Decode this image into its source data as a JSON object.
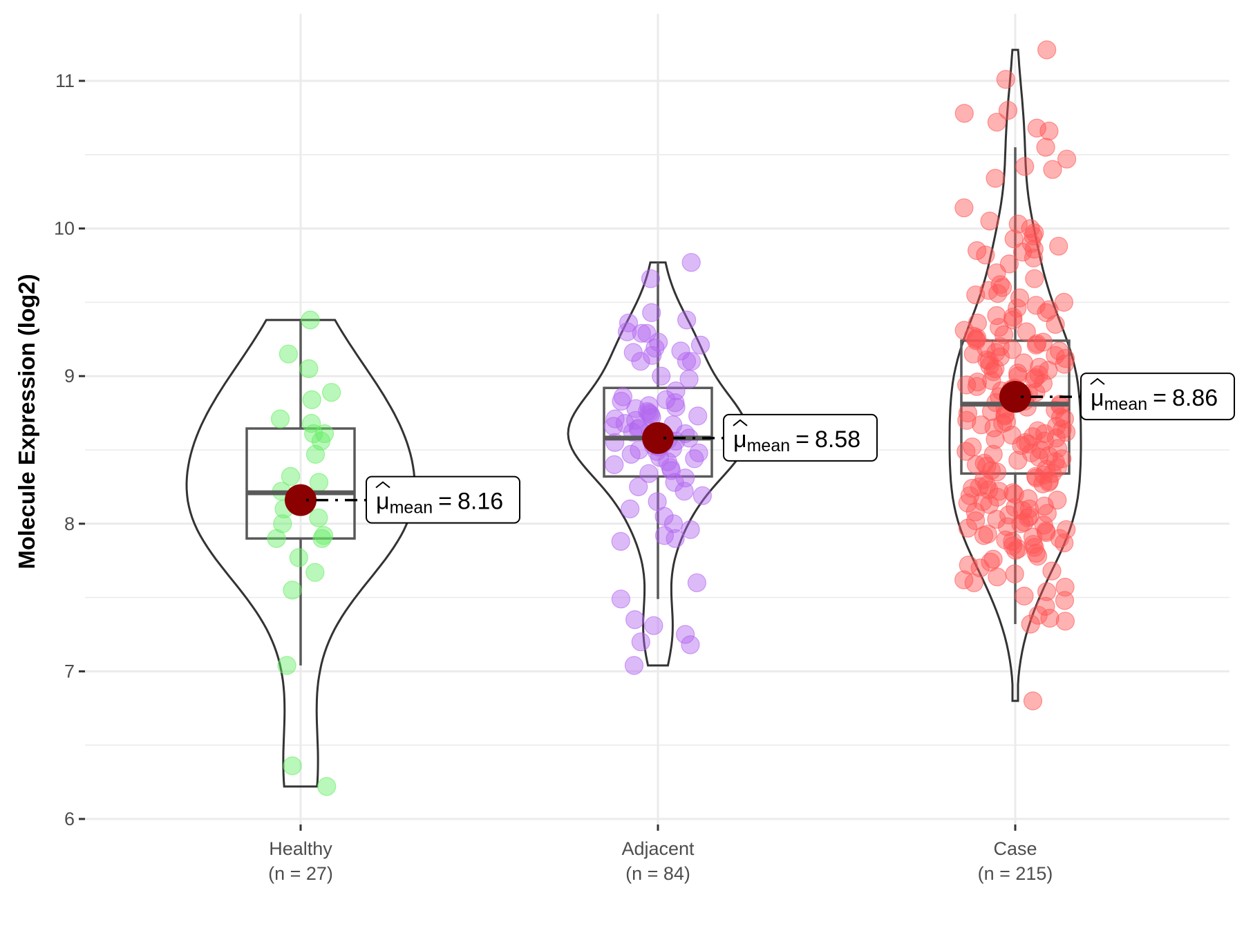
{
  "chart_data": {
    "type": "violin-box-scatter",
    "title": "",
    "xlabel": "",
    "ylabel": "Molecule Expression (log2)",
    "ylim": [
      5.75,
      11.35
    ],
    "yticks": [
      6,
      7,
      8,
      9,
      10,
      11
    ],
    "ytick_labels": [
      "6",
      "7",
      "8",
      "9",
      "10",
      "11"
    ],
    "grid": true,
    "legend": "none",
    "mean_label_symbol": "μ",
    "mean_label_subscript": "mean",
    "groups": [
      {
        "name": "Healthy",
        "n_label": "(n = 27)",
        "n": 27,
        "color": "#66ee66",
        "mean": 8.16,
        "mean_label": "8.16",
        "median": 8.21,
        "q1": 7.9,
        "q3": 8.645,
        "whisker_low": 7.04,
        "whisker_high": 9.38,
        "violin_min": 6.22,
        "violin_max": 9.38,
        "values": [
          9.38,
          9.15,
          9.05,
          8.89,
          8.84,
          8.68,
          8.71,
          8.61,
          8.61,
          8.56,
          8.47,
          8.32,
          8.28,
          8.22,
          8.14,
          8.1,
          8.0,
          8.04,
          7.92,
          7.9,
          7.9,
          7.77,
          7.67,
          7.55,
          7.04,
          6.36,
          6.22
        ]
      },
      {
        "name": "Adjacent",
        "n_label": "(n = 84)",
        "n": 84,
        "color": "#b266f0",
        "mean": 8.58,
        "mean_label": "8.58",
        "median": 8.58,
        "q1": 8.32,
        "q3": 8.92,
        "whisker_low": 7.49,
        "whisker_high": 9.77,
        "violin_min": 7.04,
        "violin_max": 9.77,
        "values": [
          9.77,
          9.66,
          9.43,
          9.38,
          9.36,
          9.3,
          9.29,
          9.29,
          9.23,
          9.21,
          9.19,
          9.17,
          9.16,
          9.14,
          9.1,
          9.1,
          9.1,
          9.0,
          8.98,
          8.9,
          8.86,
          8.84,
          8.83,
          8.82,
          8.8,
          8.79,
          8.78,
          8.76,
          8.75,
          8.74,
          8.73,
          8.72,
          8.71,
          8.7,
          8.68,
          8.67,
          8.66,
          8.65,
          8.64,
          8.63,
          8.62,
          8.61,
          8.6,
          8.59,
          8.58,
          8.57,
          8.56,
          8.55,
          8.54,
          8.53,
          8.52,
          8.51,
          8.5,
          8.49,
          8.48,
          8.47,
          8.45,
          8.44,
          8.42,
          8.4,
          8.38,
          8.36,
          8.34,
          8.31,
          8.28,
          8.25,
          8.22,
          8.19,
          8.15,
          8.1,
          8.05,
          8.0,
          7.96,
          7.92,
          7.9,
          7.88,
          7.6,
          7.49,
          7.35,
          7.31,
          7.25,
          7.2,
          7.18,
          7.04
        ]
      },
      {
        "name": "Case",
        "n_label": "(n = 215)",
        "n": 215,
        "color": "#ff5555",
        "mean": 8.86,
        "mean_label": "8.86",
        "median": 8.81,
        "q1": 8.34,
        "q3": 9.24,
        "whisker_low": 7.32,
        "whisker_high": 10.55,
        "violin_min": 6.8,
        "violin_max": 11.21,
        "values": [
          11.21,
          11.01,
          10.8,
          10.78,
          10.72,
          10.68,
          10.66,
          10.55,
          10.47,
          10.42,
          10.4,
          10.34,
          10.14,
          10.05,
          10.03,
          10.0,
          9.97,
          9.95,
          9.93,
          9.9,
          9.88,
          9.86,
          9.85,
          9.84,
          9.82,
          9.8,
          9.76,
          9.7,
          9.66,
          9.62,
          9.6,
          9.58,
          9.56,
          9.55,
          9.53,
          9.5,
          9.48,
          9.46,
          9.45,
          9.43,
          9.41,
          9.4,
          9.38,
          9.36,
          9.35,
          9.33,
          9.31,
          9.3,
          9.28,
          9.27,
          9.26,
          9.25,
          9.24,
          9.23,
          9.22,
          9.21,
          9.2,
          9.19,
          9.18,
          9.17,
          9.16,
          9.15,
          9.14,
          9.13,
          9.12,
          9.11,
          9.1,
          9.09,
          9.08,
          9.07,
          9.06,
          9.05,
          9.04,
          9.03,
          9.02,
          9.01,
          9.0,
          8.99,
          8.98,
          8.97,
          8.96,
          8.95,
          8.94,
          8.93,
          8.92,
          8.91,
          8.9,
          8.89,
          8.88,
          8.87,
          8.86,
          8.85,
          8.84,
          8.83,
          8.82,
          8.81,
          8.8,
          8.79,
          8.78,
          8.77,
          8.76,
          8.75,
          8.74,
          8.73,
          8.72,
          8.71,
          8.7,
          8.69,
          8.68,
          8.67,
          8.66,
          8.65,
          8.64,
          8.63,
          8.62,
          8.61,
          8.6,
          8.59,
          8.58,
          8.57,
          8.56,
          8.55,
          8.54,
          8.53,
          8.52,
          8.51,
          8.5,
          8.49,
          8.48,
          8.47,
          8.46,
          8.45,
          8.44,
          8.43,
          8.42,
          8.41,
          8.4,
          8.39,
          8.38,
          8.37,
          8.36,
          8.35,
          8.34,
          8.33,
          8.32,
          8.31,
          8.3,
          8.29,
          8.28,
          8.27,
          8.26,
          8.25,
          8.24,
          8.23,
          8.22,
          8.21,
          8.2,
          8.19,
          8.18,
          8.17,
          8.16,
          8.15,
          8.14,
          8.13,
          8.12,
          8.11,
          8.1,
          8.09,
          8.08,
          8.07,
          8.06,
          8.05,
          8.04,
          8.03,
          8.02,
          8.01,
          8.0,
          7.99,
          7.98,
          7.97,
          7.96,
          7.95,
          7.94,
          7.93,
          7.92,
          7.91,
          7.9,
          7.89,
          7.88,
          7.87,
          7.86,
          7.85,
          7.84,
          7.83,
          7.82,
          7.8,
          7.78,
          7.76,
          7.74,
          7.72,
          7.7,
          7.68,
          7.66,
          7.64,
          7.62,
          7.6,
          7.57,
          7.54,
          7.51,
          7.48,
          7.44,
          7.38,
          7.36,
          7.34,
          7.32,
          6.8
        ]
      }
    ]
  }
}
